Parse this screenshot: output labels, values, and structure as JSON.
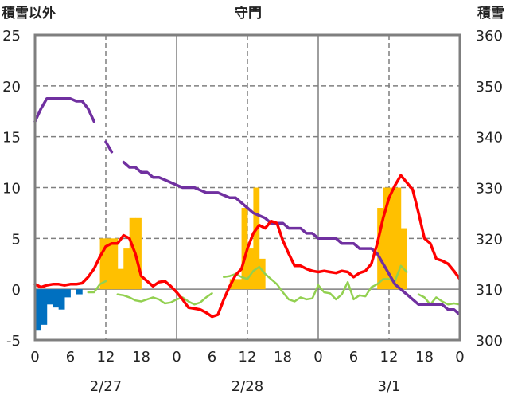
{
  "chart_data": {
    "type": "bar+line",
    "title": "守門",
    "left_axis_title": "積雪以外",
    "right_axis_title": "積雪",
    "left_ylim": [
      -5,
      25
    ],
    "left_yticks": [
      "25",
      "20",
      "15",
      "10",
      "5",
      "0",
      "-5"
    ],
    "right_ylim": [
      300,
      360
    ],
    "right_yticks": [
      "360",
      "350",
      "340",
      "330",
      "320",
      "310",
      "300"
    ],
    "x_ticks": [
      "0",
      "6",
      "12",
      "18",
      "0",
      "6",
      "12",
      "18",
      "0",
      "6",
      "12",
      "18",
      "0"
    ],
    "date_labels": [
      "2/27",
      "2/28",
      "3/1"
    ],
    "colors": {
      "snowfall": "#FFC000",
      "precip": "#0070C0",
      "temp_red": "#FF0000",
      "temp_green": "#92D050",
      "snow_depth": "#7030A0"
    },
    "snowfall_bars": [
      [
        11,
        5
      ],
      [
        12,
        5
      ],
      [
        13,
        5
      ],
      [
        14,
        2
      ],
      [
        15,
        4
      ],
      [
        16,
        7
      ],
      [
        17,
        7
      ],
      [
        33,
        1
      ],
      [
        34,
        1
      ],
      [
        35,
        8
      ],
      [
        36,
        4
      ],
      [
        37,
        10
      ],
      [
        38,
        3
      ],
      [
        58,
        8
      ],
      [
        59,
        10
      ],
      [
        60,
        10
      ],
      [
        61,
        10
      ],
      [
        62,
        6
      ]
    ],
    "negative_bars": [
      [
        0,
        -4
      ],
      [
        1,
        -3.5
      ],
      [
        2,
        -1.5
      ],
      [
        3,
        -1.8
      ],
      [
        4,
        -2
      ],
      [
        5,
        -0.8
      ],
      [
        7,
        -0.5
      ]
    ],
    "temp_red": [
      [
        0,
        0.5
      ],
      [
        1,
        0.2
      ],
      [
        2,
        0.4
      ],
      [
        3,
        0.5
      ],
      [
        4,
        0.5
      ],
      [
        5,
        0.4
      ],
      [
        6,
        0.5
      ],
      [
        7,
        0.5
      ],
      [
        8,
        0.6
      ],
      [
        9,
        1.2
      ],
      [
        10,
        2
      ],
      [
        11,
        3.2
      ],
      [
        12,
        4.2
      ],
      [
        13,
        4.5
      ],
      [
        14,
        4.5
      ],
      [
        15,
        5.3
      ],
      [
        16,
        5
      ],
      [
        17,
        3.5
      ],
      [
        18,
        1.3
      ],
      [
        19,
        0.8
      ],
      [
        20,
        0.3
      ],
      [
        21,
        0.7
      ],
      [
        22,
        0.8
      ],
      [
        23,
        0.3
      ],
      [
        24,
        -0.3
      ],
      [
        25,
        -1
      ],
      [
        26,
        -1.8
      ],
      [
        27,
        -1.9
      ],
      [
        28,
        -2
      ],
      [
        29,
        -2.3
      ],
      [
        30,
        -2.7
      ],
      [
        31,
        -2.5
      ],
      [
        32,
        -1
      ],
      [
        33,
        0.3
      ],
      [
        34,
        1.4
      ],
      [
        35,
        2
      ],
      [
        36,
        4
      ],
      [
        37,
        5.5
      ],
      [
        38,
        6.3
      ],
      [
        39,
        6
      ],
      [
        40,
        6.7
      ],
      [
        41,
        6.5
      ],
      [
        42,
        4.8
      ],
      [
        43,
        3.5
      ],
      [
        44,
        2.3
      ],
      [
        45,
        2.3
      ],
      [
        46,
        2
      ],
      [
        47,
        1.8
      ],
      [
        48,
        1.7
      ],
      [
        49,
        1.8
      ],
      [
        50,
        1.7
      ],
      [
        51,
        1.6
      ],
      [
        52,
        1.8
      ],
      [
        53,
        1.7
      ],
      [
        54,
        1.2
      ],
      [
        55,
        1.6
      ],
      [
        56,
        1.8
      ],
      [
        57,
        2.5
      ],
      [
        58,
        4.5
      ],
      [
        59,
        7
      ],
      [
        60,
        9
      ],
      [
        61,
        10.2
      ],
      [
        62,
        11.2
      ],
      [
        63,
        10.5
      ],
      [
        64,
        9.8
      ],
      [
        65,
        7.5
      ],
      [
        66,
        5
      ],
      [
        67,
        4.5
      ],
      [
        68,
        3
      ],
      [
        69,
        2.8
      ],
      [
        70,
        2.5
      ],
      [
        71,
        1.8
      ],
      [
        72,
        1
      ]
    ],
    "temp_green": [
      [
        9,
        -0.3
      ],
      [
        10,
        -0.3
      ],
      [
        11,
        0.5
      ],
      [
        12,
        0.8
      ],
      [
        14,
        -0.5
      ],
      [
        15,
        -0.6
      ],
      [
        16,
        -0.8
      ],
      [
        17,
        -1.1
      ],
      [
        18,
        -1.2
      ],
      [
        19,
        -1
      ],
      [
        20,
        -0.8
      ],
      [
        21,
        -1
      ],
      [
        22,
        -1.4
      ],
      [
        23,
        -1.3
      ],
      [
        24,
        -1
      ],
      [
        25,
        -0.8
      ],
      [
        26,
        -1.2
      ],
      [
        27,
        -1.5
      ],
      [
        28,
        -1.3
      ],
      [
        29,
        -0.8
      ],
      [
        30,
        -0.4
      ],
      [
        32,
        1.2
      ],
      [
        33,
        1.3
      ],
      [
        34,
        1.5
      ],
      [
        35,
        1.2
      ],
      [
        36,
        1
      ],
      [
        37,
        1.8
      ],
      [
        38,
        2.2
      ],
      [
        39,
        1.5
      ],
      [
        40,
        1
      ],
      [
        41,
        0.5
      ],
      [
        42,
        -0.3
      ],
      [
        43,
        -1
      ],
      [
        44,
        -1.2
      ],
      [
        45,
        -0.8
      ],
      [
        46,
        -1
      ],
      [
        47,
        -0.9
      ],
      [
        48,
        0.4
      ],
      [
        49,
        -0.3
      ],
      [
        50,
        -0.4
      ],
      [
        51,
        -1
      ],
      [
        52,
        -0.5
      ],
      [
        53,
        0.7
      ],
      [
        54,
        -1
      ],
      [
        55,
        -0.6
      ],
      [
        56,
        -0.7
      ],
      [
        57,
        0.2
      ],
      [
        58,
        0.5
      ],
      [
        59,
        1
      ],
      [
        60,
        1
      ],
      [
        61,
        0.8
      ],
      [
        62,
        2.3
      ],
      [
        63,
        1.7
      ],
      [
        65,
        -0.5
      ],
      [
        66,
        -0.8
      ],
      [
        67,
        -1.5
      ],
      [
        68,
        -0.8
      ],
      [
        69,
        -1.2
      ],
      [
        70,
        -1.5
      ],
      [
        71,
        -1.4
      ],
      [
        72,
        -1.5
      ]
    ],
    "snow_depth": [
      [
        0,
        343
      ],
      [
        1,
        345.5
      ],
      [
        2,
        347.5
      ],
      [
        3,
        347.5
      ],
      [
        4,
        347.5
      ],
      [
        5,
        347.5
      ],
      [
        6,
        347.5
      ],
      [
        7,
        347
      ],
      [
        8,
        347
      ],
      [
        9,
        345.5
      ],
      [
        10,
        343
      ],
      [
        12,
        339
      ],
      [
        13,
        337
      ],
      [
        15,
        335
      ],
      [
        16,
        334
      ],
      [
        17,
        334
      ],
      [
        18,
        333
      ],
      [
        19,
        333
      ],
      [
        20,
        332
      ],
      [
        21,
        332
      ],
      [
        22,
        331.5
      ],
      [
        23,
        331
      ],
      [
        24,
        330.5
      ],
      [
        25,
        330
      ],
      [
        26,
        330
      ],
      [
        27,
        330
      ],
      [
        28,
        329.5
      ],
      [
        29,
        329
      ],
      [
        30,
        329
      ],
      [
        31,
        329
      ],
      [
        32,
        328.5
      ],
      [
        33,
        328
      ],
      [
        34,
        328
      ],
      [
        35,
        327
      ],
      [
        36,
        326
      ],
      [
        37,
        325
      ],
      [
        38,
        324.5
      ],
      [
        39,
        324
      ],
      [
        40,
        323
      ],
      [
        41,
        323
      ],
      [
        42,
        323
      ],
      [
        43,
        322
      ],
      [
        44,
        322
      ],
      [
        45,
        322
      ],
      [
        46,
        321
      ],
      [
        47,
        321
      ],
      [
        48,
        320
      ],
      [
        49,
        320
      ],
      [
        50,
        320
      ],
      [
        51,
        320
      ],
      [
        52,
        319
      ],
      [
        53,
        319
      ],
      [
        54,
        319
      ],
      [
        55,
        318
      ],
      [
        56,
        318
      ],
      [
        57,
        318
      ],
      [
        58,
        317
      ],
      [
        59,
        315
      ],
      [
        60,
        313
      ],
      [
        61,
        311
      ],
      [
        62,
        310
      ],
      [
        63,
        309
      ],
      [
        64,
        308
      ],
      [
        65,
        307
      ],
      [
        66,
        307
      ],
      [
        67,
        307
      ],
      [
        68,
        307
      ],
      [
        69,
        307
      ],
      [
        70,
        306
      ],
      [
        71,
        306
      ],
      [
        72,
        305
      ]
    ]
  }
}
